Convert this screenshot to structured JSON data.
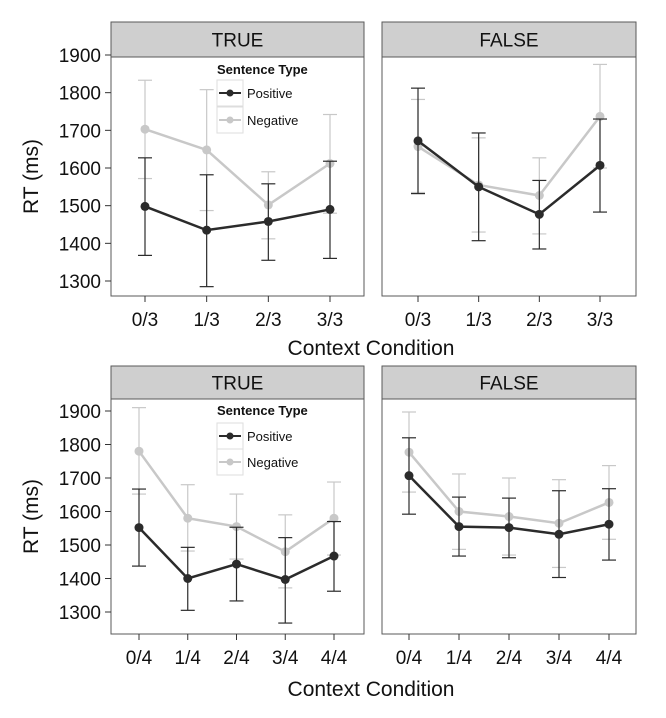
{
  "chart_data": [
    {
      "type": "line",
      "panel": "TRUE",
      "row": 1,
      "categories": [
        "0/3",
        "1/3",
        "2/3",
        "3/3"
      ],
      "xlabel": "Context Condition",
      "ylabel": "RT (ms)",
      "ylim": [
        1245,
        1915
      ],
      "yticks": [
        "1300",
        "1400",
        "1500",
        "1600",
        "1700",
        "1800",
        "1900"
      ],
      "legend": {
        "title": "Sentence Type",
        "placement": "top-center"
      },
      "series": [
        {
          "name": "Positive",
          "color": "#2b2b2b",
          "values": [
            1498,
            1435,
            1458,
            1490
          ],
          "err_low": [
            1368,
            1285,
            1355,
            1360
          ],
          "err_high": [
            1627,
            1582,
            1558,
            1618
          ]
        },
        {
          "name": "Negative",
          "color": "#c8c8c8",
          "values": [
            1703,
            1648,
            1502,
            1612
          ],
          "err_low": [
            1572,
            1487,
            1412,
            1480
          ],
          "err_high": [
            1833,
            1808,
            1590,
            1742
          ]
        }
      ]
    },
    {
      "type": "line",
      "panel": "FALSE",
      "row": 1,
      "categories": [
        "0/3",
        "1/3",
        "2/3",
        "3/3"
      ],
      "xlabel": "Context Condition",
      "ylabel": "RT (ms)",
      "ylim": [
        1245,
        1915
      ],
      "series": [
        {
          "name": "Positive",
          "color": "#2b2b2b",
          "values": [
            1672,
            1550,
            1477,
            1607
          ],
          "err_low": [
            1532,
            1407,
            1385,
            1483
          ],
          "err_high": [
            1812,
            1693,
            1567,
            1730
          ]
        },
        {
          "name": "Negative",
          "color": "#c8c8c8",
          "values": [
            1657,
            1555,
            1527,
            1737
          ],
          "err_low": [
            1535,
            1430,
            1425,
            1600
          ],
          "err_high": [
            1782,
            1680,
            1627,
            1875
          ]
        }
      ]
    },
    {
      "type": "line",
      "panel": "TRUE",
      "row": 2,
      "categories": [
        "0/4",
        "1/4",
        "2/4",
        "3/4",
        "4/4"
      ],
      "xlabel": "Context Condition",
      "ylabel": "RT (ms)",
      "ylim": [
        1245,
        1915
      ],
      "yticks": [
        "1300",
        "1400",
        "1500",
        "1600",
        "1700",
        "1800",
        "1900"
      ],
      "legend": {
        "title": "Sentence Type",
        "placement": "top-center"
      },
      "series": [
        {
          "name": "Positive",
          "color": "#2b2b2b",
          "values": [
            1552,
            1400,
            1443,
            1397,
            1467
          ],
          "err_low": [
            1437,
            1305,
            1333,
            1267,
            1362
          ],
          "err_high": [
            1667,
            1493,
            1553,
            1522,
            1570
          ]
        },
        {
          "name": "Negative",
          "color": "#c8c8c8",
          "values": [
            1780,
            1580,
            1555,
            1480,
            1580
          ],
          "err_low": [
            1652,
            1482,
            1458,
            1372,
            1470
          ],
          "err_high": [
            1910,
            1680,
            1652,
            1590,
            1688
          ]
        }
      ]
    },
    {
      "type": "line",
      "panel": "FALSE",
      "row": 2,
      "categories": [
        "0/4",
        "1/4",
        "2/4",
        "3/4",
        "4/4"
      ],
      "xlabel": "Context Condition",
      "ylabel": "RT (ms)",
      "ylim": [
        1245,
        1915
      ],
      "series": [
        {
          "name": "Positive",
          "color": "#2b2b2b",
          "values": [
            1707,
            1555,
            1552,
            1532,
            1562
          ],
          "err_low": [
            1592,
            1467,
            1462,
            1403,
            1455
          ],
          "err_high": [
            1820,
            1643,
            1640,
            1662,
            1668
          ]
        },
        {
          "name": "Negative",
          "color": "#c8c8c8",
          "values": [
            1777,
            1600,
            1585,
            1565,
            1627
          ],
          "err_low": [
            1658,
            1487,
            1470,
            1433,
            1517
          ],
          "err_high": [
            1897,
            1712,
            1700,
            1695,
            1737
          ]
        }
      ]
    }
  ]
}
